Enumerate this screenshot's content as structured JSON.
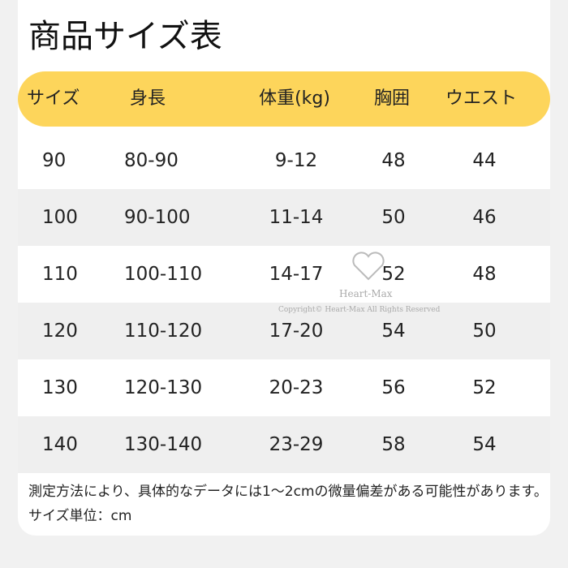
{
  "header": {
    "title": "商品サイズ表"
  },
  "table": {
    "columns": [
      "サイズ",
      "身長",
      "体重(kg)",
      "胸囲",
      "ウエスト"
    ],
    "rows": [
      [
        "90",
        "80-90",
        "9-12",
        "48",
        "44"
      ],
      [
        "100",
        "90-100",
        "11-14",
        "50",
        "46"
      ],
      [
        "110",
        "100-110",
        "14-17",
        "52",
        "48"
      ],
      [
        "120",
        "110-120",
        "17-20",
        "54",
        "50"
      ],
      [
        "130",
        "120-130",
        "20-23",
        "56",
        "52"
      ],
      [
        "140",
        "130-140",
        "23-29",
        "58",
        "54"
      ]
    ]
  },
  "watermark": {
    "brand": "Heart-Max",
    "copyright": "Copyright© Heart-Max All Rights Reserved"
  },
  "note": "測定方法により、具体的なデータには1～2cmの微量偏差がある可能性があります。サイズ単位：cm"
}
